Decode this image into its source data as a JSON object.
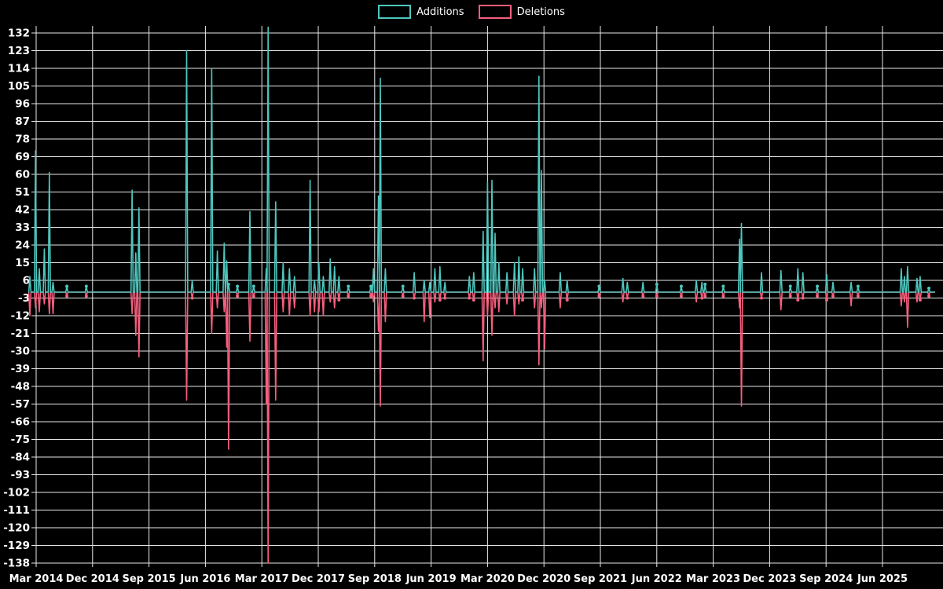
{
  "legend": {
    "additions_label": "Additions",
    "deletions_label": "Deletions"
  },
  "colors": {
    "additions": "#4ec6be",
    "deletions": "#f75e7e",
    "grid": "#e9e9e9",
    "text": "#ffffff",
    "background": "#000000"
  },
  "chart_data": {
    "type": "line",
    "title": "",
    "xlabel": "",
    "ylabel": "",
    "grid": true,
    "legend_position": "top",
    "series_names": [
      "Additions",
      "Deletions"
    ],
    "y_ticks": [
      132,
      123,
      114,
      105,
      96,
      87,
      78,
      69,
      60,
      51,
      42,
      33,
      24,
      15,
      6,
      -3,
      -12,
      -21,
      -30,
      -39,
      -48,
      -57,
      -66,
      -75,
      -84,
      -93,
      -102,
      -111,
      -120,
      -129,
      -138
    ],
    "x_ticks": [
      "Mar 2014",
      "Dec 2014",
      "Sep 2015",
      "Jun 2016",
      "Mar 2017",
      "Dec 2017",
      "Sep 2018",
      "Jun 2019",
      "Mar 2020",
      "Dec 2020",
      "Sep 2021",
      "Jun 2022",
      "Mar 2023",
      "Dec 2023",
      "Sep 2024",
      "Jun 2025"
    ],
    "x_tick_spacing_months": 9,
    "x_unit": "months since Jan 2014 (decimal); x_ticks[0] = Mar 2014 = 2",
    "x_range": [
      0.8,
      145.4
    ],
    "y_axis_range": [
      -138,
      135.6
    ],
    "baseline": 0,
    "points_format": [
      "x_months",
      "additions",
      "deletions"
    ],
    "points": [
      [
        1.0,
        8,
        -12
      ],
      [
        1.9,
        72,
        -8
      ],
      [
        2.5,
        12,
        -10
      ],
      [
        3.3,
        22,
        -6
      ],
      [
        4.1,
        61,
        -11
      ],
      [
        4.7,
        5,
        -11
      ],
      [
        6.9,
        3,
        -2
      ],
      [
        10.0,
        3,
        -2
      ],
      [
        17.3,
        52,
        -11
      ],
      [
        17.9,
        20,
        -22
      ],
      [
        18.4,
        43,
        -33
      ],
      [
        26.0,
        123,
        -55
      ],
      [
        26.9,
        6,
        -3
      ],
      [
        30.0,
        114,
        -21
      ],
      [
        30.9,
        21,
        -8
      ],
      [
        32.0,
        25,
        -10
      ],
      [
        32.4,
        16,
        -28
      ],
      [
        32.7,
        4,
        -80
      ],
      [
        34.1,
        3,
        -2
      ],
      [
        36.1,
        41,
        -25
      ],
      [
        36.7,
        3,
        -2
      ],
      [
        38.7,
        12,
        -57
      ],
      [
        39.0,
        135,
        -138
      ],
      [
        40.2,
        46,
        -55
      ],
      [
        41.4,
        15,
        -10
      ],
      [
        42.4,
        12,
        -12
      ],
      [
        43.2,
        8,
        -8
      ],
      [
        45.7,
        57,
        -12
      ],
      [
        46.4,
        6,
        -10
      ],
      [
        47.1,
        15,
        -10
      ],
      [
        47.8,
        8,
        -12
      ],
      [
        48.9,
        17,
        -5
      ],
      [
        49.6,
        13,
        -8
      ],
      [
        50.3,
        8,
        -4
      ],
      [
        51.8,
        3,
        -2
      ],
      [
        55.4,
        3,
        -2
      ],
      [
        55.8,
        12,
        -5
      ],
      [
        56.6,
        49,
        -20
      ],
      [
        56.9,
        109,
        -58
      ],
      [
        57.7,
        12,
        -15
      ],
      [
        60.5,
        3,
        -2
      ],
      [
        62.3,
        10,
        -3
      ],
      [
        63.9,
        6,
        -15
      ],
      [
        64.8,
        5,
        -13
      ],
      [
        65.6,
        12,
        -5
      ],
      [
        66.4,
        13,
        -4
      ],
      [
        67.2,
        5,
        -3
      ],
      [
        71.1,
        8,
        -3
      ],
      [
        71.8,
        10,
        -4
      ],
      [
        73.3,
        31,
        -35
      ],
      [
        74.0,
        56,
        -12
      ],
      [
        74.7,
        57,
        -22
      ],
      [
        75.2,
        30,
        -8
      ],
      [
        75.8,
        15,
        -10
      ],
      [
        77.1,
        10,
        -6
      ],
      [
        78.3,
        15,
        -12
      ],
      [
        79.0,
        18,
        -6
      ],
      [
        79.6,
        12,
        -4
      ],
      [
        81.5,
        12,
        -8
      ],
      [
        82.2,
        110,
        -37
      ],
      [
        82.6,
        62,
        -8
      ],
      [
        83.1,
        6,
        -29
      ],
      [
        85.6,
        10,
        -8
      ],
      [
        86.7,
        6,
        -4
      ],
      [
        91.8,
        3,
        -2
      ],
      [
        95.6,
        7,
        -5
      ],
      [
        96.3,
        5,
        -3
      ],
      [
        98.8,
        5,
        -2
      ],
      [
        101.0,
        4,
        -2
      ],
      [
        104.9,
        3,
        -2
      ],
      [
        107.3,
        6,
        -5
      ],
      [
        108.2,
        5,
        -3
      ],
      [
        108.7,
        4,
        -2
      ],
      [
        111.6,
        3,
        -2
      ],
      [
        114.2,
        27,
        -8
      ],
      [
        114.5,
        35,
        -58
      ],
      [
        117.7,
        10,
        -3
      ],
      [
        120.8,
        11,
        -9
      ],
      [
        122.3,
        3,
        -2
      ],
      [
        123.5,
        12,
        -4
      ],
      [
        124.3,
        10,
        -3
      ],
      [
        126.6,
        3,
        -2
      ],
      [
        128.1,
        9,
        -4
      ],
      [
        129.1,
        5,
        -2
      ],
      [
        132.0,
        5,
        -7
      ],
      [
        133.1,
        3,
        -2
      ],
      [
        140.0,
        12,
        -7
      ],
      [
        140.5,
        8,
        -5
      ],
      [
        141.0,
        13,
        -18
      ],
      [
        142.5,
        7,
        -5
      ],
      [
        143.0,
        8,
        -4
      ],
      [
        144.4,
        2,
        -2
      ]
    ]
  }
}
